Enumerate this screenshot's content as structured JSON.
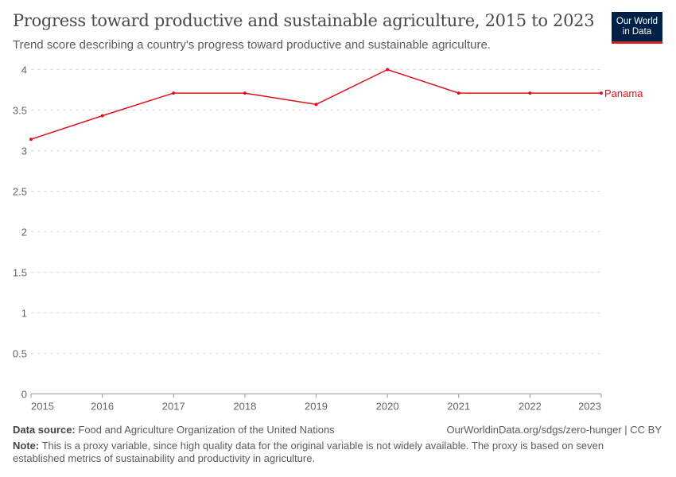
{
  "header": {
    "title": "Progress toward productive and sustainable agriculture, 2015 to 2023",
    "subtitle": "Trend score describing a country's progress toward productive and sustainable agriculture.",
    "logo_line1": "Our World",
    "logo_line2": "in Data"
  },
  "chart_data": {
    "type": "line",
    "x": [
      2015,
      2016,
      2017,
      2018,
      2019,
      2020,
      2021,
      2022,
      2023
    ],
    "series": [
      {
        "name": "Panama",
        "values": [
          3.14,
          3.43,
          3.71,
          3.71,
          3.57,
          4.0,
          3.71,
          3.71,
          3.71
        ],
        "color": "#e0101a"
      }
    ],
    "ylim": [
      0,
      4
    ],
    "yticks": [
      "0",
      "0.5",
      "1",
      "1.5",
      "2",
      "2.5",
      "3",
      "3.5",
      "4"
    ],
    "xticks": [
      "2015",
      "2016",
      "2017",
      "2018",
      "2019",
      "2020",
      "2021",
      "2022",
      "2023"
    ],
    "grid": "horizontal dashed",
    "legend": "right end label"
  },
  "footer": {
    "source_label": "Data source:",
    "source": "Food and Agriculture Organization of the United Nations",
    "url": "OurWorldinData.org/sdgs/zero-hunger | CC BY",
    "note_label": "Note:",
    "note": "This is a proxy variable, since high quality data for the original variable is not widely available. The proxy is based on seven established metrics of sustainability and productivity in agriculture."
  }
}
